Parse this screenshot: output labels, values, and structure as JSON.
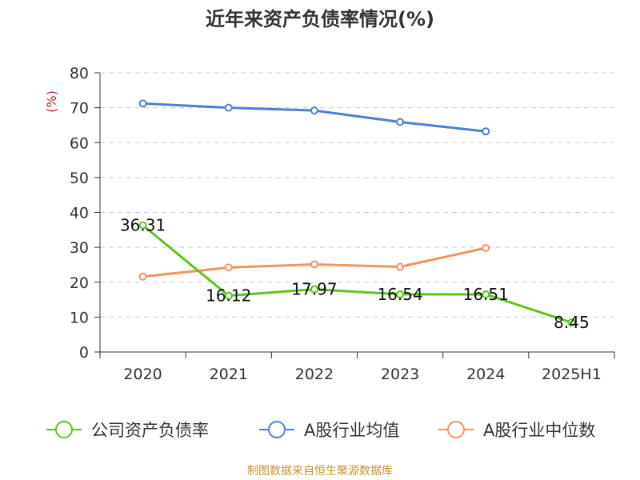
{
  "chart_data": {
    "type": "line",
    "title": "近年来资产负债率情况(%)",
    "ylabel": "(%)",
    "xlabel": "",
    "categories": [
      "2020",
      "2021",
      "2022",
      "2023",
      "2024",
      "2025H1"
    ],
    "ylim": [
      0,
      80
    ],
    "yticks": [
      "0",
      "10",
      "20",
      "30",
      "40",
      "50",
      "60",
      "70",
      "80"
    ],
    "grid": true,
    "legend_position": "bottom",
    "series": [
      {
        "name": "公司资产负债率",
        "color": "#5ec31c",
        "values": [
          36.31,
          16.12,
          17.97,
          16.54,
          16.51,
          8.45
        ],
        "labels": [
          "36.31",
          "16.12",
          "17.97",
          "16.54",
          "16.51",
          "8.45"
        ]
      },
      {
        "name": "A股行业均值",
        "color": "#4e7fd6",
        "values": [
          71.2,
          70.0,
          69.2,
          65.9,
          63.2,
          null
        ]
      },
      {
        "name": "A股行业中位数",
        "color": "#f59262",
        "values": [
          21.6,
          24.2,
          25.1,
          24.4,
          29.8,
          null
        ]
      }
    ]
  },
  "source": "制图数据来自恒生聚源数据库"
}
